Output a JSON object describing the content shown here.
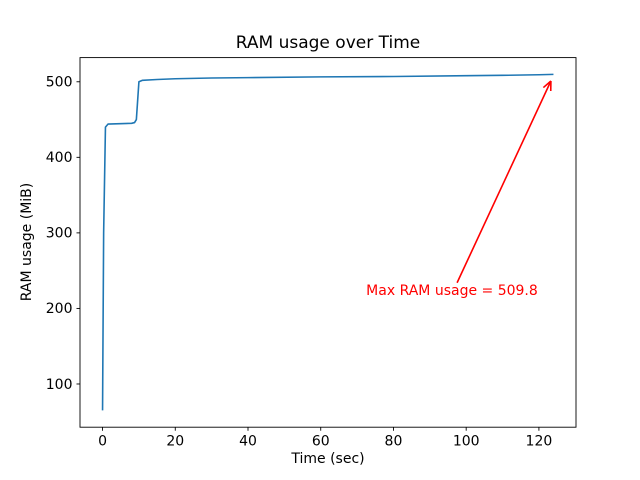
{
  "chart_data": {
    "type": "line",
    "title": "RAM usage over Time",
    "xlabel": "Time (sec)",
    "ylabel": "RAM usage (MiB)",
    "xlim": [
      -6.2,
      130.2
    ],
    "ylim": [
      42.8,
      532
    ],
    "xticks": [
      0,
      20,
      40,
      60,
      80,
      100,
      120
    ],
    "yticks": [
      100,
      200,
      300,
      400,
      500
    ],
    "grid": false,
    "legend": "none",
    "line_color": "#1f77b4",
    "series": [
      {
        "name": "RAM usage",
        "x": [
          0,
          0.3,
          0.8,
          1.5,
          8.0,
          8.8,
          9.3,
          10.0,
          11,
          15,
          20,
          30,
          40,
          60,
          80,
          100,
          110,
          120,
          124
        ],
        "y": [
          65,
          300,
          440,
          444,
          445,
          446,
          450,
          500,
          502,
          503,
          504,
          505,
          505.5,
          506.5,
          507,
          508,
          508.5,
          509.3,
          509.8
        ]
      }
    ],
    "max_ram_usage": 509.8,
    "annotation": {
      "text": "Max RAM usage = 509.8",
      "color": "#ff0000",
      "text_xy": [
        72.5,
        218
      ],
      "arrow_from": [
        97.5,
        234
      ],
      "arrow_to": [
        123.3,
        501
      ]
    }
  }
}
